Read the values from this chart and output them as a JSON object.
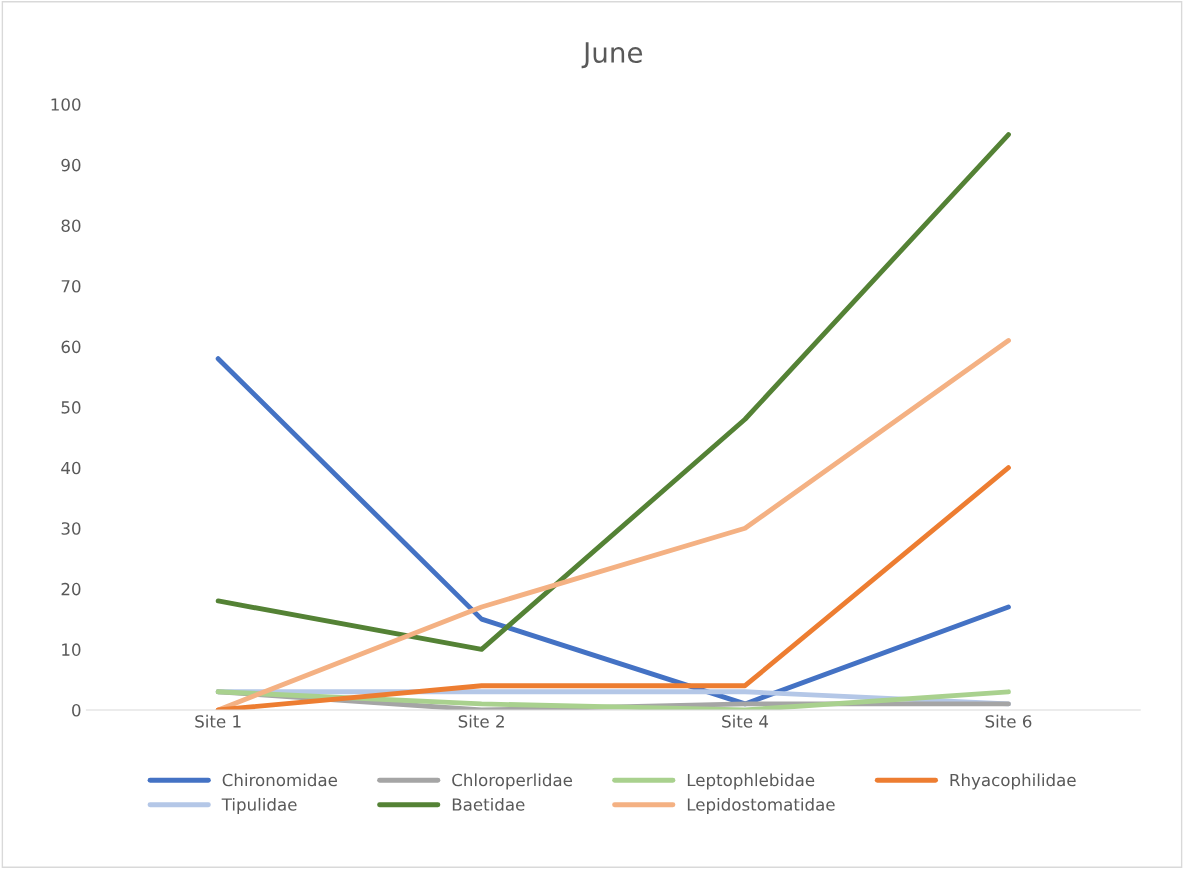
{
  "chart_data": {
    "type": "line",
    "title": "June",
    "categories": [
      "Site 1",
      "Site 2",
      "Site 4",
      "Site 6"
    ],
    "ylim": [
      0,
      100
    ],
    "yticks": [
      0,
      10,
      20,
      30,
      40,
      50,
      60,
      70,
      80,
      90,
      100
    ],
    "grid": false,
    "legend": "bottom",
    "marker": "none",
    "line_style": "solid",
    "series": [
      {
        "name": "Chironomidae",
        "color": "#4472c4",
        "values": [
          58,
          15,
          1,
          17
        ]
      },
      {
        "name": "Tipulidae",
        "color": "#b4c7e7",
        "values": [
          3,
          3,
          3,
          1
        ]
      },
      {
        "name": "Chloroperlidae",
        "color": "#a5a5a5",
        "values": [
          3,
          0,
          1,
          1
        ]
      },
      {
        "name": "Baetidae",
        "color": "#548235",
        "values": [
          18,
          10,
          48,
          95
        ]
      },
      {
        "name": "Leptophlebidae",
        "color": "#a9d18e",
        "values": [
          3,
          1,
          0,
          3
        ]
      },
      {
        "name": "Lepidostomatidae",
        "color": "#f4b183",
        "values": [
          0,
          17,
          30,
          61
        ]
      },
      {
        "name": "Rhyacophilidae",
        "color": "#ed7d31",
        "values": [
          0,
          4,
          4,
          40
        ]
      }
    ]
  }
}
